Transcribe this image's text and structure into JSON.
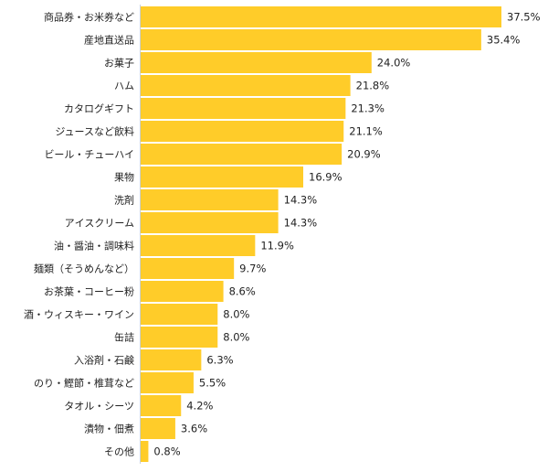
{
  "chart_data": {
    "type": "bar",
    "orientation": "horizontal",
    "title": "",
    "xlabel": "",
    "ylabel": "",
    "xlim": [
      0,
      37.5
    ],
    "grid": false,
    "bar_color": "#FFCC29",
    "axis_color": "#C8D0DC",
    "unit": "%",
    "categories": [
      "商品券・お米券など",
      "産地直送品",
      "お菓子",
      "ハム",
      "カタログギフト",
      "ジュースなど飲料",
      "ビール・チューハイ",
      "果物",
      "洗剤",
      "アイスクリーム",
      "油・醤油・調味料",
      "麺類（そうめんなど）",
      "お茶葉・コーヒー粉",
      "酒・ウィスキー・ワイン",
      "缶詰",
      "入浴剤・石鹸",
      "のり・鰹節・椎茸など",
      "タオル・シーツ",
      "漬物・佃煮",
      "その他"
    ],
    "values": [
      37.5,
      35.4,
      24.0,
      21.8,
      21.3,
      21.1,
      20.9,
      16.9,
      14.3,
      14.3,
      11.9,
      9.7,
      8.6,
      8.0,
      8.0,
      6.3,
      5.5,
      4.2,
      3.6,
      0.8
    ],
    "value_labels": [
      "37.5%",
      "35.4%",
      "24.0%",
      "21.8%",
      "21.3%",
      "21.1%",
      "20.9%",
      "16.9%",
      "14.3%",
      "14.3%",
      "11.9%",
      "9.7%",
      "8.6%",
      "8.0%",
      "8.0%",
      "6.3%",
      "5.5%",
      "4.2%",
      "3.6%",
      "0.8%"
    ]
  }
}
